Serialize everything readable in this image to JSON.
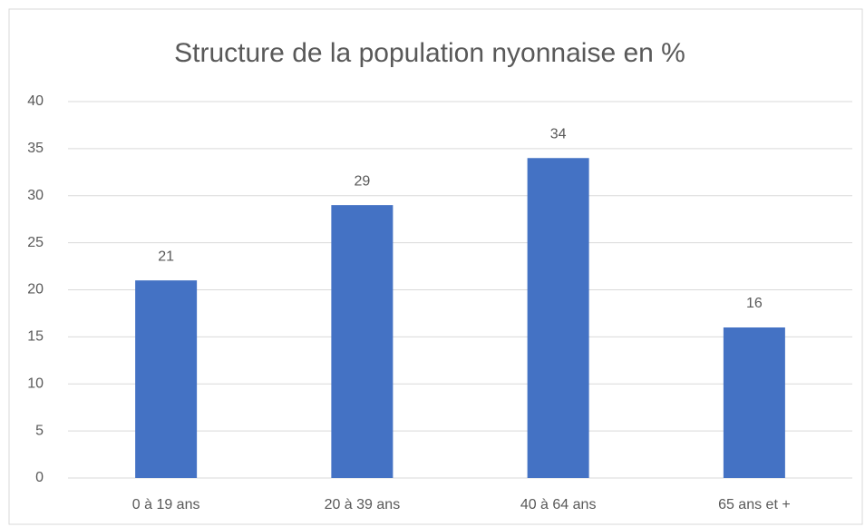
{
  "chart_data": {
    "type": "bar",
    "title": "Structure de la population nyonnaise en %",
    "categories": [
      "0 à 19 ans",
      "20 à 39 ans",
      "40 à 64 ans",
      "65 ans et +"
    ],
    "values": [
      21,
      29,
      34,
      16
    ],
    "color": "#4472c4",
    "ylim": [
      0,
      40
    ],
    "yticks": [
      0,
      5,
      10,
      15,
      20,
      25,
      30,
      35,
      40
    ],
    "grid": true,
    "data_labels": true
  }
}
